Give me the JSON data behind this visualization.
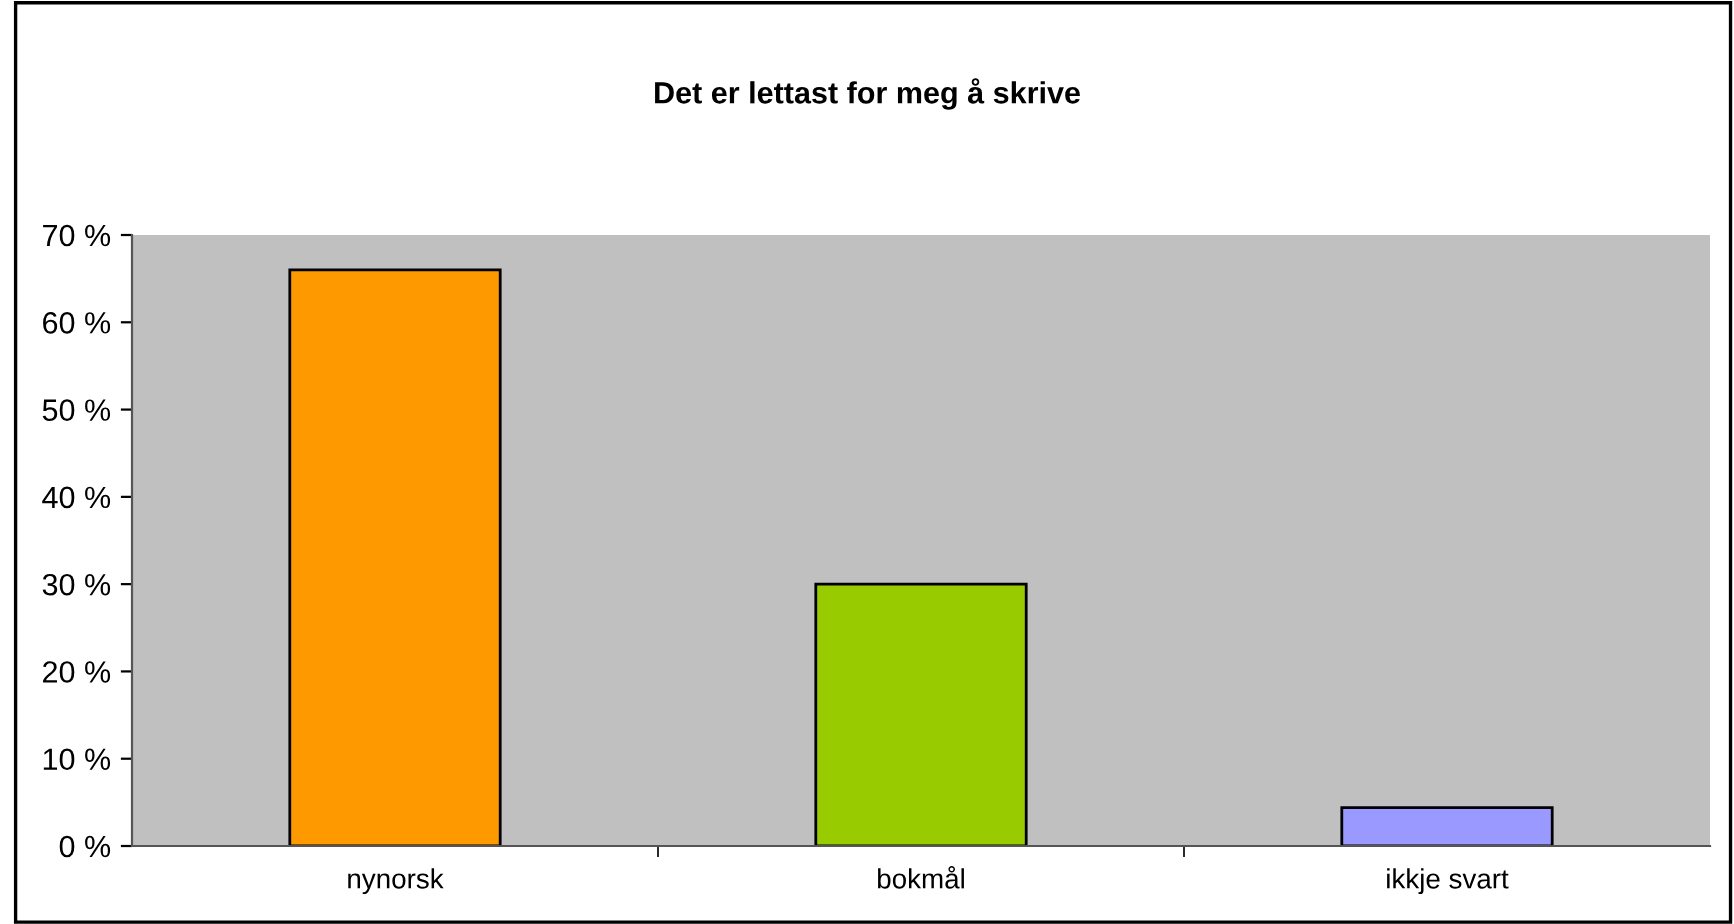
{
  "chart_data": {
    "type": "bar",
    "title": "Det er lettast for meg å skrive",
    "categories": [
      "nynorsk",
      "bokmål",
      "ikkje svart"
    ],
    "values": [
      66,
      30,
      4.4
    ],
    "colors": [
      "#ff9900",
      "#99cc00",
      "#9999ff"
    ],
    "ylim": [
      0,
      70
    ],
    "yticks": [
      {
        "value": 0,
        "label": "0 %"
      },
      {
        "value": 10,
        "label": "10 %"
      },
      {
        "value": 20,
        "label": "20 %"
      },
      {
        "value": 30,
        "label": "30 %"
      },
      {
        "value": 40,
        "label": "40 %"
      },
      {
        "value": 50,
        "label": "50 %"
      },
      {
        "value": 60,
        "label": "60 %"
      },
      {
        "value": 70,
        "label": "70 %"
      }
    ],
    "grid": false,
    "legend": false
  }
}
